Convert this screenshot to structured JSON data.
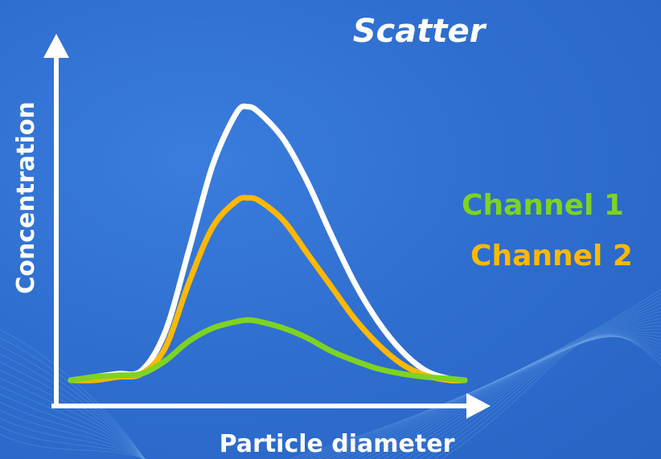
{
  "chart_data": {
    "type": "line",
    "title": "Scatter",
    "xlabel": "Particle diameter",
    "ylabel": "Concentration",
    "xlim": [
      0,
      10
    ],
    "ylim": [
      0,
      10
    ],
    "grid": false,
    "legend_position": "right",
    "x": [
      0,
      0.6,
      1.2,
      1.8,
      2.4,
      3.0,
      3.6,
      4.2,
      4.5,
      4.8,
      5.4,
      6.0,
      6.6,
      7.2,
      7.8,
      8.4,
      9.0,
      9.6,
      10.0
    ],
    "series": [
      {
        "name": "",
        "color": "#ffffff",
        "values": [
          0.0,
          0.1,
          0.2,
          0.3,
          1.5,
          4.0,
          6.6,
          8.2,
          8.4,
          8.2,
          7.4,
          6.1,
          4.5,
          3.0,
          1.8,
          0.9,
          0.3,
          0.05,
          0.0
        ]
      },
      {
        "name": "Channel 2",
        "color": "#ffb800",
        "values": [
          0.0,
          0.0,
          0.1,
          0.2,
          1.0,
          3.0,
          4.7,
          5.5,
          5.6,
          5.5,
          4.9,
          3.9,
          2.9,
          1.9,
          1.1,
          0.5,
          0.15,
          0.0,
          0.0
        ]
      },
      {
        "name": "Channel 1",
        "color": "#7ed321",
        "values": [
          0.0,
          0.1,
          0.15,
          0.2,
          0.6,
          1.2,
          1.6,
          1.8,
          1.85,
          1.8,
          1.6,
          1.3,
          0.9,
          0.6,
          0.35,
          0.2,
          0.1,
          0.05,
          0.0
        ]
      }
    ]
  }
}
